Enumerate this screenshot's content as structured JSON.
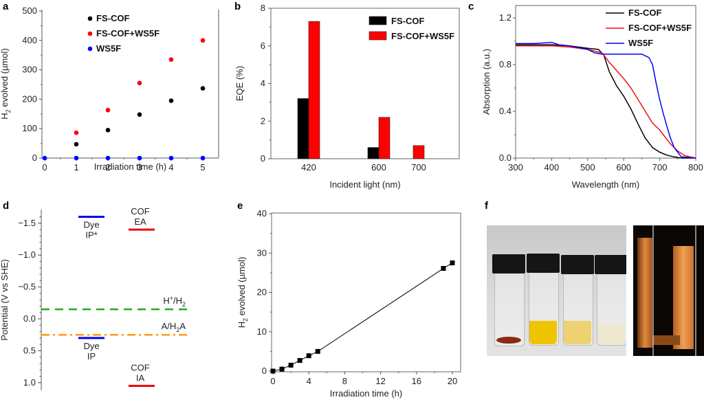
{
  "chart_data": [
    {
      "panel": "a",
      "type": "scatter",
      "xlabel": "Irradiation time (h)",
      "ylabel": "H2 evolved (µmol)",
      "ylabel_main": "H",
      "ylabel_sub": "2",
      "ylabel_rest": " evolved (µmol)",
      "xlim": [
        0,
        5
      ],
      "ylim": [
        0,
        500
      ],
      "xticks": [
        "0",
        "1",
        "2",
        "3",
        "4",
        "5"
      ],
      "yticks": [
        "0",
        "100",
        "200",
        "300",
        "400",
        "500"
      ],
      "legend_position": "top-left",
      "series": [
        {
          "name": "FS-COF",
          "color": "#000000",
          "x": [
            1,
            2,
            3,
            4,
            5
          ],
          "y": [
            47,
            95,
            148,
            195,
            237
          ]
        },
        {
          "name": "FS-COF+WS5F",
          "color": "#ff0000",
          "x": [
            1,
            2,
            3,
            4,
            5
          ],
          "y": [
            86,
            163,
            255,
            335,
            400
          ]
        },
        {
          "name": "WS5F",
          "color": "#0000ff",
          "x": [
            0,
            1,
            2,
            3,
            4,
            5
          ],
          "y": [
            0,
            0,
            0,
            0,
            0,
            0
          ]
        }
      ]
    },
    {
      "panel": "b",
      "type": "bar",
      "xlabel": "Incident light (nm)",
      "ylabel": "EQE (%)",
      "categories": [
        "420",
        "600",
        "700"
      ],
      "ylim": [
        0,
        8
      ],
      "yticks": [
        "0",
        "2",
        "4",
        "6",
        "8"
      ],
      "legend_position": "top-right",
      "series": [
        {
          "name": "FS-COF",
          "color": "#000000",
          "values": [
            3.2,
            0.6,
            0
          ]
        },
        {
          "name": "FS-COF+WS5F",
          "color": "#ff0000",
          "values": [
            7.3,
            2.2,
            0.7
          ]
        }
      ]
    },
    {
      "panel": "c",
      "type": "line",
      "xlabel": "Wavelength (nm)",
      "ylabel": "Absorption (a.u.)",
      "xlim": [
        300,
        800
      ],
      "ylim": [
        0,
        1.3
      ],
      "xticks": [
        "300",
        "400",
        "500",
        "600",
        "700",
        "800"
      ],
      "yticks": [
        "0.0",
        "0.4",
        "0.8",
        "1.2"
      ],
      "legend_position": "top-right",
      "series": [
        {
          "name": "FS-COF",
          "color": "#000000",
          "x": [
            300,
            350,
            400,
            450,
            500,
            530,
            545,
            560,
            580,
            600,
            620,
            640,
            660,
            680,
            700,
            720,
            740,
            760,
            800
          ],
          "y": [
            0.97,
            0.97,
            0.97,
            0.96,
            0.94,
            0.93,
            0.88,
            0.74,
            0.62,
            0.53,
            0.42,
            0.29,
            0.17,
            0.09,
            0.05,
            0.025,
            0.01,
            0.0,
            0.0
          ]
        },
        {
          "name": "FS-COF+WS5F",
          "color": "#ee1111",
          "x": [
            300,
            350,
            400,
            450,
            500,
            540,
            560,
            580,
            600,
            620,
            640,
            660,
            680,
            700,
            710,
            730,
            750,
            770,
            800
          ],
          "y": [
            0.96,
            0.96,
            0.96,
            0.95,
            0.93,
            0.9,
            0.82,
            0.75,
            0.68,
            0.6,
            0.5,
            0.4,
            0.3,
            0.24,
            0.2,
            0.12,
            0.06,
            0.02,
            0.0
          ]
        },
        {
          "name": "WS5F",
          "color": "#0000ee",
          "x": [
            300,
            350,
            400,
            420,
            450,
            500,
            520,
            540,
            600,
            650,
            670,
            680,
            690,
            700,
            710,
            720,
            730,
            740,
            760,
            800
          ],
          "y": [
            0.98,
            0.98,
            0.99,
            0.97,
            0.96,
            0.93,
            0.9,
            0.89,
            0.89,
            0.89,
            0.86,
            0.8,
            0.64,
            0.5,
            0.38,
            0.27,
            0.17,
            0.09,
            0.01,
            0.0
          ]
        }
      ]
    },
    {
      "panel": "d",
      "type": "diagram",
      "ylabel": "Potential (V vs SHE)",
      "ylim": [
        -1.7,
        1.1
      ],
      "yticks": [
        "-1.5",
        "-1.0",
        "-0.5",
        "0.0",
        "0.5",
        "1.0"
      ],
      "levels": [
        {
          "name": "Dye IP*",
          "line1": "Dye",
          "line2": "IP*",
          "value": -1.6,
          "color": "#0000ee",
          "group": "dye"
        },
        {
          "name": "COF EA",
          "line1": "COF",
          "line2": "EA",
          "value": -1.4,
          "color": "#ee0000",
          "group": "cof"
        },
        {
          "name": "Dye IP",
          "line1": "Dye",
          "line2": "IP",
          "value": 0.3,
          "color": "#0000ee",
          "group": "dye"
        },
        {
          "name": "COF IA",
          "line1": "COF",
          "line2": "IA",
          "value": 1.05,
          "color": "#ee0000",
          "group": "cof"
        }
      ],
      "references": [
        {
          "name": "H+/H2",
          "value": -0.15,
          "color": "#22aa22",
          "style": "dashed"
        },
        {
          "name": "A/H2A",
          "value": 0.25,
          "color": "#ff9911",
          "style": "dashdot"
        }
      ]
    },
    {
      "panel": "e",
      "type": "line",
      "xlabel": "Irradiation time (h)",
      "ylabel": "H2 evolved (µmol)",
      "ylabel_main": "H",
      "ylabel_sub": "2",
      "ylabel_rest": " evolved (µmol)",
      "xlim": [
        0,
        21
      ],
      "ylim": [
        0,
        40
      ],
      "xticks": [
        "0",
        "4",
        "8",
        "12",
        "16",
        "20"
      ],
      "yticks": [
        "0",
        "10",
        "20",
        "30",
        "40"
      ],
      "series": [
        {
          "name": "H2 evolved",
          "color": "#000000",
          "x": [
            0,
            1,
            2,
            3,
            4,
            5,
            19,
            20
          ],
          "y": [
            0,
            0.5,
            1.5,
            2.7,
            3.9,
            5.0,
            26.1,
            27.5
          ]
        }
      ]
    }
  ],
  "panel_f": {
    "label": "f",
    "photo1": "four vials with black caps: red-brown solid, yellow solution, pale yellow solution, nearly colourless solution",
    "photo2": "cuvette with orange solid and gas bubbles on dark background"
  },
  "panel_labels": [
    "a",
    "b",
    "c",
    "d",
    "e",
    "f"
  ]
}
